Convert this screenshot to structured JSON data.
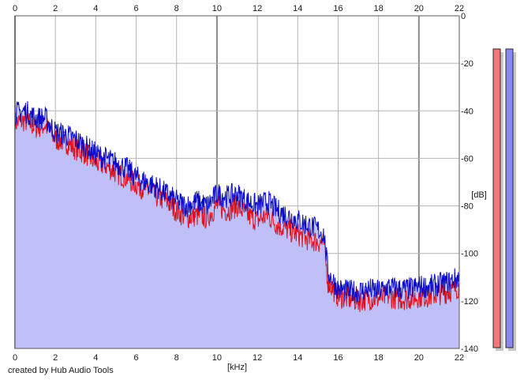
{
  "chart_data": {
    "type": "area",
    "xlabel": "[kHz]",
    "ylabel": "[dB]",
    "xlim": [
      0,
      22
    ],
    "ylim": [
      -140,
      0
    ],
    "x_ticks": [
      0,
      2,
      4,
      6,
      8,
      10,
      12,
      14,
      16,
      18,
      20,
      22
    ],
    "y_ticks": [
      0,
      -20,
      -40,
      -60,
      -80,
      -100,
      -120,
      -140
    ],
    "grid": true,
    "fill_color": "#c0c0f8",
    "series": [
      {
        "color": "#e0101c",
        "x": [
          0,
          0.5,
          1,
          1.5,
          2,
          2.5,
          3,
          3.5,
          4,
          4.5,
          5,
          5.5,
          6,
          6.5,
          7,
          7.5,
          8,
          8.5,
          9,
          9.5,
          10,
          10.5,
          11,
          11.5,
          12,
          12.5,
          13,
          13.5,
          14,
          14.5,
          15,
          15.3,
          15.5,
          16,
          16.5,
          17,
          17.5,
          18,
          18.5,
          19,
          19.5,
          20,
          20.5,
          21,
          21.5,
          22
        ],
        "values": [
          -45,
          -44,
          -47,
          -46,
          -52,
          -53,
          -56,
          -58,
          -62,
          -63,
          -66,
          -68,
          -71,
          -73,
          -76,
          -78,
          -82,
          -85,
          -84,
          -85,
          -80,
          -82,
          -80,
          -84,
          -86,
          -84,
          -88,
          -90,
          -92,
          -94,
          -95,
          -96,
          -112,
          -118,
          -119,
          -120,
          -119,
          -119,
          -118,
          -119,
          -119,
          -118,
          -118,
          -117,
          -116,
          -114
        ]
      },
      {
        "color": "#0a0ac8",
        "x": [
          0,
          0.5,
          1,
          1.5,
          2,
          2.5,
          3,
          3.5,
          4,
          4.5,
          5,
          5.5,
          6,
          6.5,
          7,
          7.5,
          8,
          8.5,
          9,
          9.5,
          10,
          10.5,
          11,
          11.5,
          12,
          12.5,
          13,
          13.5,
          14,
          14.5,
          15,
          15.3,
          15.5,
          16,
          16.5,
          17,
          17.5,
          18,
          18.5,
          19,
          19.5,
          20,
          20.5,
          21,
          21.5,
          22
        ],
        "values": [
          -41,
          -40,
          -43,
          -43,
          -49,
          -50,
          -52,
          -55,
          -58,
          -60,
          -62,
          -64,
          -68,
          -70,
          -72,
          -75,
          -78,
          -80,
          -78,
          -80,
          -75,
          -76,
          -75,
          -78,
          -80,
          -78,
          -82,
          -84,
          -86,
          -88,
          -90,
          -92,
          -108,
          -115,
          -116,
          -116,
          -115,
          -116,
          -114,
          -115,
          -115,
          -114,
          -114,
          -113,
          -112,
          -110
        ]
      }
    ],
    "meters": {
      "left": {
        "color": "#f07878",
        "level_db": -14
      },
      "right": {
        "color": "#8888ee",
        "level_db": -14
      }
    }
  },
  "footer": {
    "credit": "created by Hub Audio Tools"
  }
}
